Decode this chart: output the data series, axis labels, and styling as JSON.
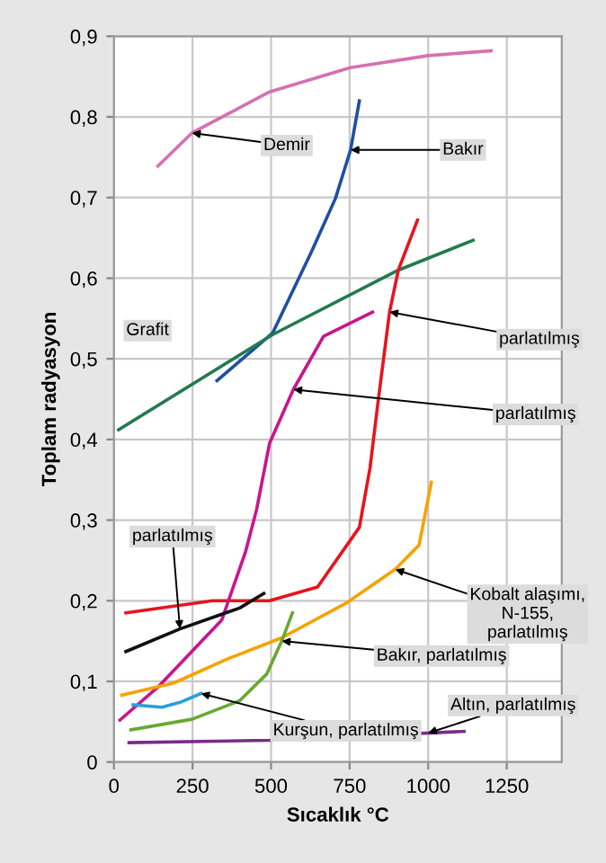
{
  "chart_data": {
    "type": "line",
    "xlabel": "Sıcaklık °C",
    "ylabel": "Toplam radyasyon",
    "xlim": [
      0,
      1425
    ],
    "ylim": [
      0,
      0.9
    ],
    "xticks": [
      0,
      250,
      500,
      750,
      1000,
      1250
    ],
    "yticks": [
      {
        "value": 0,
        "label": "0"
      },
      {
        "value": 0.1,
        "label": "0,1"
      },
      {
        "value": 0.2,
        "label": "0,2"
      },
      {
        "value": 0.3,
        "label": "0,3"
      },
      {
        "value": 0.4,
        "label": "0,4"
      },
      {
        "value": 0.5,
        "label": "0,5"
      },
      {
        "value": 0.6,
        "label": "0,6"
      },
      {
        "value": 0.7,
        "label": "0,7"
      },
      {
        "value": 0.8,
        "label": "0,8"
      },
      {
        "value": 0.9,
        "label": "0,9"
      }
    ],
    "grid": true,
    "marker": "none",
    "line_style": "solid",
    "series": [
      {
        "color": "#d670b0",
        "x": [
          140,
          248,
          495,
          752,
          1000,
          1200
        ],
        "values": [
          0.739,
          0.78,
          0.831,
          0.861,
          0.876,
          0.882
        ]
      },
      {
        "color": "#1f4fa0",
        "x": [
          328,
          505,
          629,
          705,
          753,
          781
        ],
        "values": [
          0.473,
          0.532,
          0.633,
          0.699,
          0.759,
          0.82
        ]
      },
      {
        "color": "#237a50",
        "x": [
          15,
          505,
          905,
          1143
        ],
        "values": [
          0.412,
          0.53,
          0.61,
          0.647
        ]
      },
      {
        "color": "#e8141e",
        "x": [
          38,
          314,
          495,
          648,
          781,
          815,
          838,
          877,
          905,
          966
        ],
        "values": [
          0.185,
          0.2,
          0.2,
          0.217,
          0.291,
          0.365,
          0.439,
          0.558,
          0.61,
          0.672
        ]
      },
      {
        "color": "#c8168c",
        "x": [
          19,
          143,
          343,
          419,
          454,
          495,
          571,
          667,
          823
        ],
        "values": [
          0.052,
          0.094,
          0.176,
          0.261,
          0.313,
          0.395,
          0.462,
          0.528,
          0.558
        ]
      },
      {
        "color": "#111111",
        "x": [
          38,
          210,
          400,
          477
        ],
        "values": [
          0.137,
          0.165,
          0.191,
          0.209
        ]
      },
      {
        "color": "#f5a300",
        "x": [
          25,
          191,
          362,
          534,
          743,
          895,
          971,
          1010
        ],
        "values": [
          0.083,
          0.098,
          0.128,
          0.154,
          0.198,
          0.239,
          0.269,
          0.347
        ]
      },
      {
        "color": "#6aa832",
        "x": [
          54,
          248,
          400,
          486,
          534,
          568
        ],
        "values": [
          0.04,
          0.053,
          0.076,
          0.109,
          0.15,
          0.185
        ]
      },
      {
        "color": "#2a9fd8",
        "x": [
          61,
          153,
          210,
          277
        ],
        "values": [
          0.071,
          0.068,
          0.074,
          0.085
        ]
      },
      {
        "color": "#7a2a8a",
        "x": [
          48,
          495,
          1114
        ],
        "values": [
          0.024,
          0.027,
          0.038
        ]
      }
    ],
    "annotations": [
      {
        "text": "Demir",
        "x": 248,
        "y": 0.78
      },
      {
        "text": "Bakır",
        "x": 753,
        "y": 0.759
      },
      {
        "text": "Grafit",
        "x": 107,
        "y": 0.535
      },
      {
        "text": "parlatılmış",
        "x": 877,
        "y": 0.558
      },
      {
        "text": "parlatılmış",
        "x": 571,
        "y": 0.462
      },
      {
        "text": "parlatılmış",
        "x": 210,
        "y": 0.165
      },
      {
        "text": "Kobalt alaşımı,\nN-155,\nparlatılmış",
        "x": 895,
        "y": 0.239
      },
      {
        "text": "Bakır, parlatılmış",
        "x": 534,
        "y": 0.15
      },
      {
        "text": "Kurşun, parlatılmış",
        "x": 277,
        "y": 0.085
      },
      {
        "text": "Altın, parlatılmış",
        "x": 1000,
        "y": 0.036
      }
    ]
  }
}
